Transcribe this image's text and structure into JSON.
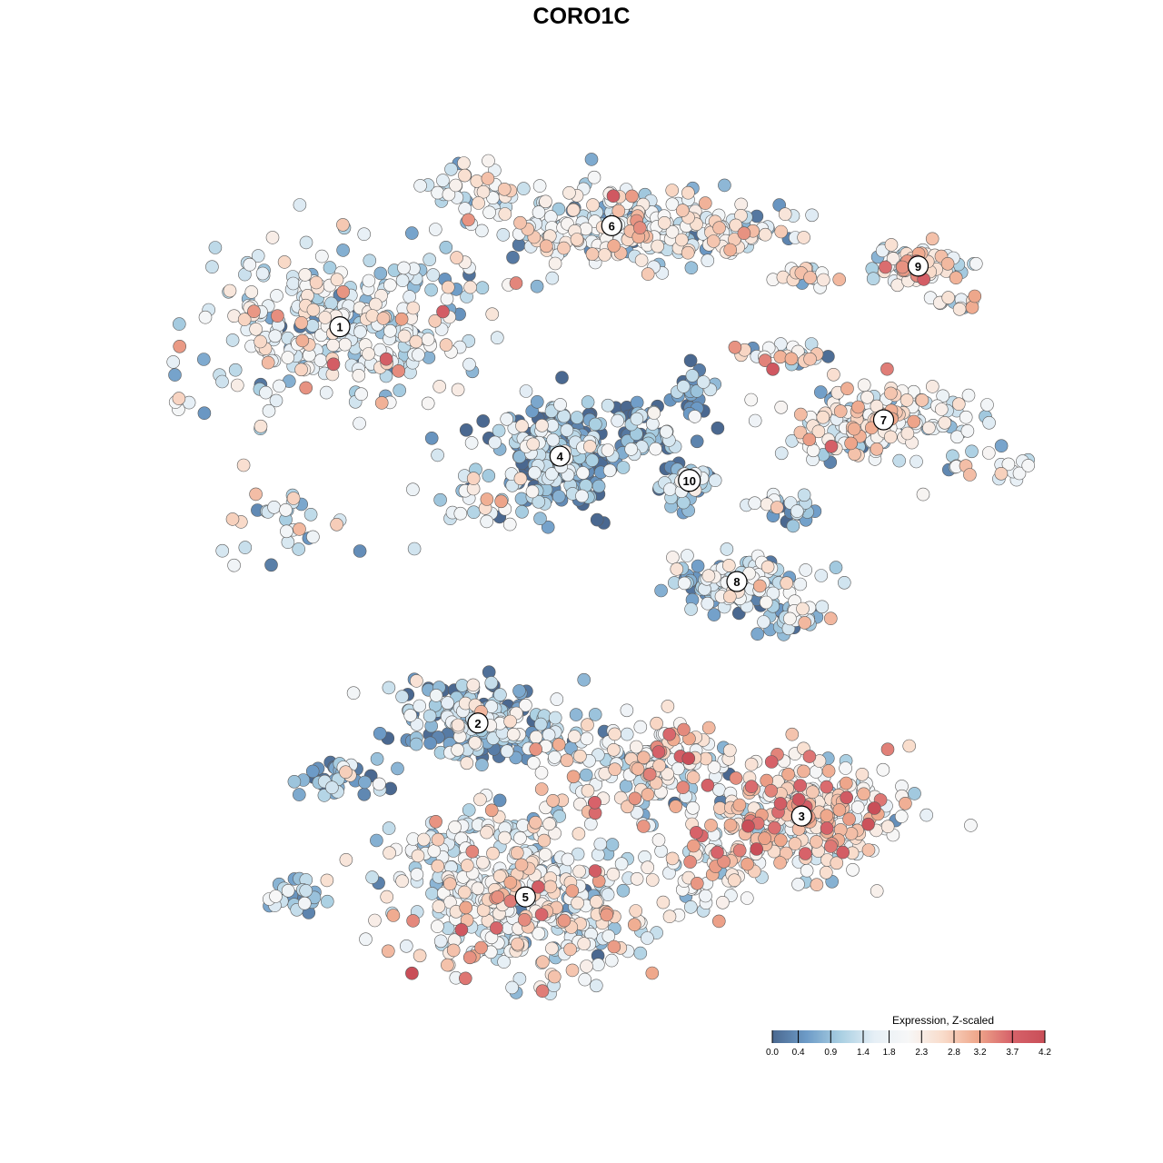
{
  "chart_data": {
    "type": "scatter",
    "title": "CORO1C",
    "xlabel": "",
    "ylabel": "",
    "grid": false,
    "legend": {
      "title": "Expression, Z-scaled",
      "placement": "bottom-right",
      "ticks": [
        "0.0",
        "0.4",
        "0.9",
        "1.4",
        "1.8",
        "2.3",
        "2.8",
        "3.2",
        "3.7",
        "4.2"
      ],
      "range": [
        0.0,
        4.2
      ],
      "colors": [
        "#4a6890",
        "#6d9bc7",
        "#a9cfe2",
        "#e6eff6",
        "#f7f7f7",
        "#f9dccb",
        "#efa88c",
        "#d7636a",
        "#c94e58"
      ]
    },
    "clusters": [
      {
        "label": "1",
        "x": -0.56,
        "y": 0.63,
        "mean_expression": 1.6
      },
      {
        "label": "2",
        "x": -0.24,
        "y": -0.35,
        "mean_expression": 0.9
      },
      {
        "label": "3",
        "x": 0.51,
        "y": -0.58,
        "mean_expression": 2.3
      },
      {
        "label": "4",
        "x": -0.05,
        "y": 0.31,
        "mean_expression": 0.6
      },
      {
        "label": "5",
        "x": -0.13,
        "y": -0.78,
        "mean_expression": 1.9
      },
      {
        "label": "6",
        "x": 0.07,
        "y": 0.88,
        "mean_expression": 1.8
      },
      {
        "label": "7",
        "x": 0.7,
        "y": 0.4,
        "mean_expression": 1.9
      },
      {
        "label": "8",
        "x": 0.36,
        "y": 0.0,
        "mean_expression": 1.2
      },
      {
        "label": "9",
        "x": 0.78,
        "y": 0.78,
        "mean_expression": 2.0
      },
      {
        "label": "10",
        "x": 0.25,
        "y": 0.25,
        "mean_expression": 1.0
      }
    ]
  }
}
